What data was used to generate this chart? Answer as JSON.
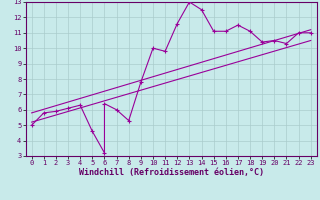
{
  "xlabel": "Windchill (Refroidissement éolien,°C)",
  "bg_color": "#c8eaea",
  "line_color": "#990099",
  "grid_color": "#aacccc",
  "xlim": [
    -0.5,
    23.5
  ],
  "ylim": [
    3,
    13
  ],
  "xticks": [
    0,
    1,
    2,
    3,
    4,
    5,
    6,
    7,
    8,
    9,
    10,
    11,
    12,
    13,
    14,
    15,
    16,
    17,
    18,
    19,
    20,
    21,
    22,
    23
  ],
  "yticks": [
    3,
    4,
    5,
    6,
    7,
    8,
    9,
    10,
    11,
    12,
    13
  ],
  "scatter_x": [
    0,
    1,
    2,
    3,
    4,
    5,
    6,
    6,
    7,
    8,
    9,
    10,
    11,
    12,
    13,
    14,
    15,
    16,
    17,
    18,
    19,
    20,
    21,
    22,
    23
  ],
  "scatter_y": [
    5.0,
    5.8,
    5.9,
    6.1,
    6.3,
    4.6,
    3.2,
    6.4,
    6.0,
    5.3,
    7.8,
    10.0,
    9.8,
    11.6,
    13.0,
    12.5,
    11.1,
    11.1,
    11.5,
    11.1,
    10.4,
    10.5,
    10.3,
    11.0,
    11.0
  ],
  "line1_x": [
    0,
    23
  ],
  "line1_y": [
    5.2,
    10.5
  ],
  "line2_x": [
    0,
    23
  ],
  "line2_y": [
    5.8,
    11.2
  ],
  "font_color": "#660066",
  "tick_fontsize": 5,
  "xlabel_fontsize": 6,
  "linewidth": 0.8,
  "marker_size": 3
}
